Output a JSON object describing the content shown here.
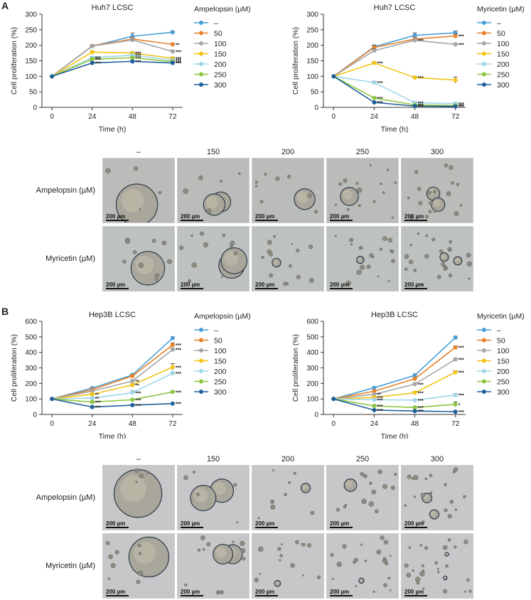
{
  "panels": [
    {
      "letter": "A",
      "charts": [
        {
          "type": "line",
          "title": "Huh7 LCSC",
          "xlabel": "Time (h)",
          "ylabel": "Cell proliferation (%)",
          "legend_title": "Ampelopsin (µM)",
          "x": [
            0,
            24,
            48,
            72
          ],
          "ylim": [
            0,
            300
          ],
          "yticks": [
            0,
            50,
            100,
            150,
            200,
            250,
            300
          ],
          "series": [
            {
              "name": "–",
              "color": "#4a9fd8",
              "values": [
                100,
                197,
                229,
                242
              ],
              "err": [
                0,
                4,
                10,
                4
              ],
              "sig": [
                "",
                "",
                "",
                ""
              ]
            },
            {
              "name": "50",
              "color": "#e8822a",
              "values": [
                100,
                198,
                220,
                203
              ],
              "err": [
                0,
                4,
                4,
                4
              ],
              "sig": [
                "",
                "",
                "",
                "**"
              ]
            },
            {
              "name": "100",
              "color": "#a6a6a6",
              "values": [
                100,
                197,
                217,
                180
              ],
              "err": [
                0,
                4,
                6,
                4
              ],
              "sig": [
                "",
                "",
                "",
                "***"
              ]
            },
            {
              "name": "150",
              "color": "#f2c413",
              "values": [
                100,
                178,
                175,
                158
              ],
              "err": [
                0,
                4,
                4,
                4
              ],
              "sig": [
                "",
                "",
                "***",
                "***"
              ]
            },
            {
              "name": "200",
              "color": "#9fd6ea",
              "values": [
                100,
                160,
                168,
                152
              ],
              "err": [
                0,
                4,
                4,
                4
              ],
              "sig": [
                "",
                "***",
                "***",
                "***"
              ]
            },
            {
              "name": "250",
              "color": "#8dc63f",
              "values": [
                100,
                155,
                160,
                147
              ],
              "err": [
                0,
                4,
                4,
                4
              ],
              "sig": [
                "",
                "***",
                "***",
                "***"
              ]
            },
            {
              "name": "300",
              "color": "#1f5f9a",
              "values": [
                100,
                143,
                148,
                143
              ],
              "err": [
                0,
                4,
                4,
                4
              ],
              "sig": [
                "",
                "***",
                "***",
                "***"
              ]
            }
          ]
        },
        {
          "type": "line",
          "title": "Huh7 LCSC",
          "xlabel": "Time (h)",
          "ylabel": "Cell proliferation (%)",
          "legend_title": "Myricetin (µM)",
          "x": [
            0,
            24,
            48,
            72
          ],
          "ylim": [
            0,
            300
          ],
          "yticks": [
            0,
            50,
            100,
            150,
            200,
            250,
            300
          ],
          "series": [
            {
              "name": "–",
              "color": "#4a9fd8",
              "values": [
                100,
                195,
                232,
                240
              ],
              "err": [
                0,
                6,
                8,
                6
              ],
              "sig": [
                "",
                "",
                "",
                ""
              ]
            },
            {
              "name": "50",
              "color": "#e8822a",
              "values": [
                100,
                193,
                220,
                230
              ],
              "err": [
                0,
                6,
                6,
                6
              ],
              "sig": [
                "",
                "",
                "",
                "***"
              ]
            },
            {
              "name": "100",
              "color": "#a6a6a6",
              "values": [
                100,
                183,
                216,
                203
              ],
              "err": [
                0,
                6,
                4,
                4
              ],
              "sig": [
                "",
                "",
                "***",
                "***"
              ]
            },
            {
              "name": "150",
              "color": "#f2c413",
              "values": [
                100,
                143,
                96,
                88
              ],
              "err": [
                0,
                4,
                4,
                10
              ],
              "sig": [
                "",
                "***",
                "***",
                ""
              ]
            },
            {
              "name": "200",
              "color": "#9fd6ea",
              "values": [
                100,
                80,
                15,
                12
              ],
              "err": [
                0,
                4,
                4,
                4
              ],
              "sig": [
                "",
                "***",
                "***",
                "***"
              ]
            },
            {
              "name": "250",
              "color": "#8dc63f",
              "values": [
                100,
                30,
                8,
                6
              ],
              "err": [
                0,
                4,
                3,
                3
              ],
              "sig": [
                "",
                "***",
                "***",
                "***"
              ]
            },
            {
              "name": "300",
              "color": "#1f5f9a",
              "values": [
                100,
                16,
                4,
                3
              ],
              "err": [
                0,
                3,
                2,
                2
              ],
              "sig": [
                "",
                "***",
                "***",
                "***"
              ]
            }
          ]
        }
      ],
      "columns": [
        "–",
        "150",
        "200",
        "250",
        "300"
      ],
      "rows": [
        "Ampelopsin (µM)",
        "Myricetin (µM)"
      ],
      "scale_label": "200 µm"
    },
    {
      "letter": "B",
      "charts": [
        {
          "type": "line",
          "title": "Hep3B LCSC",
          "xlabel": "Time (h)",
          "ylabel": "Cell proliferation (%)",
          "legend_title": "Ampelopsin (µM)",
          "x": [
            0,
            24,
            48,
            72
          ],
          "ylim": [
            0,
            600
          ],
          "yticks": [
            0,
            100,
            200,
            300,
            400,
            500,
            600
          ],
          "series": [
            {
              "name": "–",
              "color": "#4a9fd8",
              "values": [
                100,
                170,
                255,
                492
              ],
              "err": [
                0,
                6,
                8,
                8
              ],
              "sig": [
                "",
                "",
                "",
                ""
              ]
            },
            {
              "name": "50",
              "color": "#e8822a",
              "values": [
                100,
                160,
                248,
                448
              ],
              "err": [
                0,
                6,
                8,
                14
              ],
              "sig": [
                "",
                "",
                "",
                "***"
              ]
            },
            {
              "name": "100",
              "color": "#a6a6a6",
              "values": [
                100,
                150,
                215,
                418
              ],
              "err": [
                0,
                6,
                8,
                10
              ],
              "sig": [
                "",
                "",
                "**",
                "***"
              ]
            },
            {
              "name": "150",
              "color": "#f2c413",
              "values": [
                100,
                130,
                190,
                305
              ],
              "err": [
                0,
                6,
                8,
                22
              ],
              "sig": [
                "",
                "**",
                "**",
                "***"
              ]
            },
            {
              "name": "200",
              "color": "#9fd6ea",
              "values": [
                100,
                105,
                140,
                265
              ],
              "err": [
                0,
                6,
                12,
                8
              ],
              "sig": [
                "",
                "**",
                "***",
                "***"
              ]
            },
            {
              "name": "250",
              "color": "#8dc63f",
              "values": [
                100,
                80,
                95,
                145
              ],
              "err": [
                0,
                6,
                6,
                8
              ],
              "sig": [
                "",
                "***",
                "***",
                "***"
              ]
            },
            {
              "name": "300",
              "color": "#1f5f9a",
              "values": [
                100,
                48,
                60,
                70
              ],
              "err": [
                0,
                4,
                4,
                4
              ],
              "sig": [
                "",
                "***",
                "***",
                "***"
              ]
            }
          ]
        },
        {
          "type": "line",
          "title": "Hep3B LCSC",
          "xlabel": "Time (h)",
          "ylabel": "Cell proliferation (%)",
          "legend_title": "Myricetin (µM)",
          "x": [
            0,
            24,
            48,
            72
          ],
          "ylim": [
            0,
            600
          ],
          "yticks": [
            0,
            100,
            200,
            300,
            400,
            500,
            600
          ],
          "series": [
            {
              "name": "–",
              "color": "#4a9fd8",
              "values": [
                100,
                172,
                252,
                496
              ],
              "err": [
                0,
                6,
                10,
                8
              ],
              "sig": [
                "",
                "",
                "",
                ""
              ]
            },
            {
              "name": "50",
              "color": "#e8822a",
              "values": [
                100,
                150,
                230,
                432
              ],
              "err": [
                0,
                6,
                8,
                10
              ],
              "sig": [
                "",
                "",
                "",
                "***"
              ]
            },
            {
              "name": "100",
              "color": "#a6a6a6",
              "values": [
                100,
                130,
                195,
                355
              ],
              "err": [
                0,
                6,
                8,
                8
              ],
              "sig": [
                "",
                "**",
                "***",
                "***"
              ]
            },
            {
              "name": "150",
              "color": "#f2c413",
              "values": [
                100,
                110,
                140,
                272
              ],
              "err": [
                0,
                6,
                8,
                10
              ],
              "sig": [
                "",
                "***",
                "***",
                "***"
              ]
            },
            {
              "name": "200",
              "color": "#9fd6ea",
              "values": [
                100,
                95,
                92,
                125
              ],
              "err": [
                0,
                6,
                6,
                10
              ],
              "sig": [
                "",
                "***",
                "***",
                "***"
              ]
            },
            {
              "name": "250",
              "color": "#8dc63f",
              "values": [
                100,
                55,
                45,
                65
              ],
              "err": [
                0,
                6,
                6,
                16
              ],
              "sig": [
                "",
                "***",
                "***",
                "*"
              ]
            },
            {
              "name": "300",
              "color": "#1f5f9a",
              "values": [
                100,
                28,
                22,
                18
              ],
              "err": [
                0,
                4,
                4,
                4
              ],
              "sig": [
                "",
                "***",
                "***",
                "***"
              ]
            }
          ]
        }
      ],
      "columns": [
        "–",
        "150",
        "200",
        "250",
        "300"
      ],
      "rows": [
        "Ampelopsin (µM)",
        "Myricetin (µM)"
      ],
      "scale_label": "200 µm"
    }
  ]
}
